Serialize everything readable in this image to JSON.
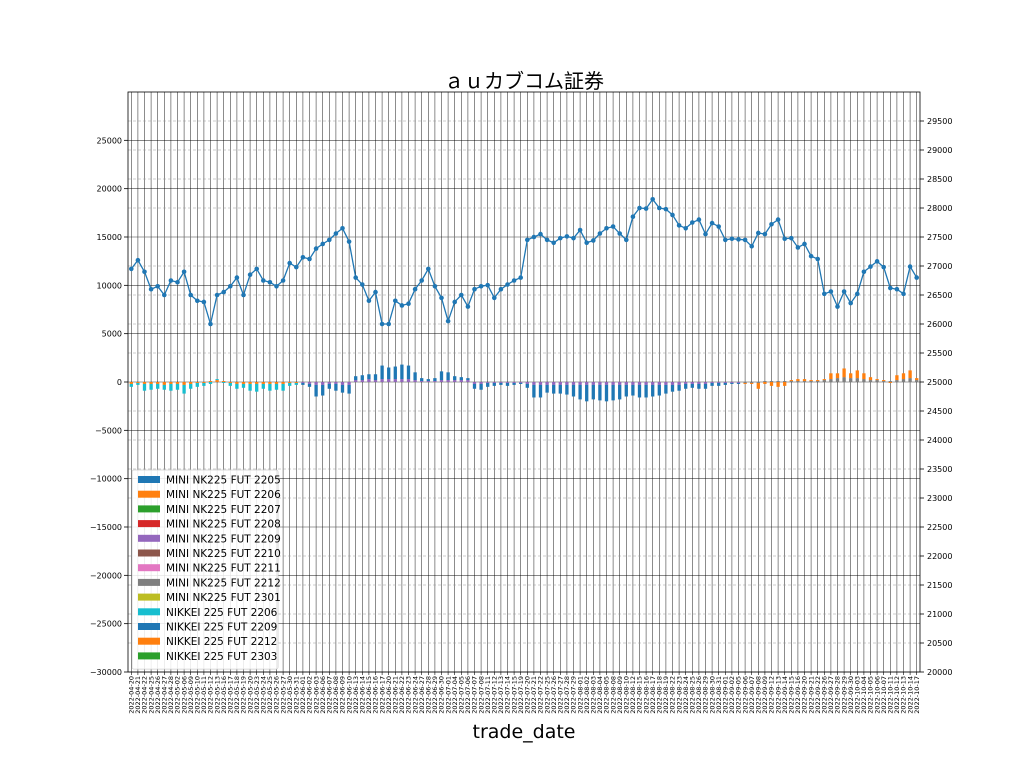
{
  "chart_data": {
    "type": "bar",
    "title": "ａｕカブコム証券",
    "xlabel": "trade_date",
    "ylabel": "",
    "ylim": [
      -30000,
      30000
    ],
    "y_ticks": [
      25000,
      20000,
      15000,
      10000,
      5000,
      0,
      -5000,
      -10000,
      -15000,
      -20000,
      -25000,
      -30000
    ],
    "y2lim": [
      20000,
      30000
    ],
    "y2_ticks": [
      29500,
      29000,
      28500,
      28000,
      27500,
      27000,
      26500,
      26000,
      25500,
      25000,
      24500,
      24000,
      23500,
      23000,
      22500,
      22000,
      21500,
      21000,
      20500,
      20000
    ],
    "grid": true,
    "legend_position": "lower-left",
    "stacked": true,
    "x": [
      "2022-04-20",
      "2022-04-21",
      "2022-04-22",
      "2022-04-25",
      "2022-04-26",
      "2022-04-27",
      "2022-04-28",
      "2022-05-02",
      "2022-05-06",
      "2022-05-09",
      "2022-05-10",
      "2022-05-11",
      "2022-05-12",
      "2022-05-13",
      "2022-05-16",
      "2022-05-17",
      "2022-05-18",
      "2022-05-19",
      "2022-05-20",
      "2022-05-23",
      "2022-05-24",
      "2022-05-25",
      "2022-05-26",
      "2022-05-27",
      "2022-05-30",
      "2022-05-31",
      "2022-06-01",
      "2022-06-02",
      "2022-06-03",
      "2022-06-06",
      "2022-06-07",
      "2022-06-08",
      "2022-06-09",
      "2022-06-10",
      "2022-06-13",
      "2022-06-14",
      "2022-06-15",
      "2022-06-16",
      "2022-06-17",
      "2022-06-20",
      "2022-06-21",
      "2022-06-22",
      "2022-06-23",
      "2022-06-24",
      "2022-06-27",
      "2022-06-28",
      "2022-06-29",
      "2022-06-30",
      "2022-07-01",
      "2022-07-04",
      "2022-07-05",
      "2022-07-06",
      "2022-07-07",
      "2022-07-08",
      "2022-07-11",
      "2022-07-12",
      "2022-07-13",
      "2022-07-14",
      "2022-07-15",
      "2022-07-19",
      "2022-07-20",
      "2022-07-21",
      "2022-07-22",
      "2022-07-25",
      "2022-07-26",
      "2022-07-27",
      "2022-07-28",
      "2022-07-29",
      "2022-08-01",
      "2022-08-02",
      "2022-08-03",
      "2022-08-04",
      "2022-08-05",
      "2022-08-08",
      "2022-08-09",
      "2022-08-10",
      "2022-08-12",
      "2022-08-15",
      "2022-08-16",
      "2022-08-17",
      "2022-08-18",
      "2022-08-19",
      "2022-08-22",
      "2022-08-23",
      "2022-08-24",
      "2022-08-25",
      "2022-08-26",
      "2022-08-29",
      "2022-08-30",
      "2022-08-31",
      "2022-09-01",
      "2022-09-02",
      "2022-09-05",
      "2022-09-06",
      "2022-09-07",
      "2022-09-08",
      "2022-09-09",
      "2022-09-12",
      "2022-09-13",
      "2022-09-14",
      "2022-09-15",
      "2022-09-16",
      "2022-09-20",
      "2022-09-21",
      "2022-09-22",
      "2022-09-26",
      "2022-09-27",
      "2022-09-28",
      "2022-09-29",
      "2022-09-30",
      "2022-10-03",
      "2022-10-04",
      "2022-10-05",
      "2022-10-06",
      "2022-10-07",
      "2022-10-11",
      "2022-10-12",
      "2022-10-13",
      "2022-10-14",
      "2022-10-17"
    ],
    "price_series": {
      "name": "",
      "axis": "right",
      "color": "#1f77b4",
      "values": [
        26950,
        27100,
        26900,
        26600,
        26650,
        26500,
        26750,
        26720,
        26900,
        26500,
        26400,
        26380,
        26000,
        26500,
        26550,
        26650,
        26800,
        26500,
        26850,
        26950,
        26750,
        26720,
        26650,
        26750,
        27050,
        26980,
        27150,
        27120,
        27300,
        27380,
        27450,
        27560,
        27650,
        27420,
        26800,
        26680,
        26400,
        26550,
        26000,
        26000,
        26400,
        26320,
        26350,
        26600,
        26750,
        26950,
        26650,
        26450,
        26050,
        26380,
        26500,
        26300,
        26600,
        26650,
        26670,
        26450,
        26600,
        26680,
        26750,
        26800,
        27450,
        27500,
        27550,
        27450,
        27400,
        27480,
        27510,
        27480,
        27620,
        27400,
        27440,
        27560,
        27650,
        27680,
        27560,
        27450,
        27850,
        28000,
        27990,
        28150,
        28000,
        27980,
        27880,
        27700,
        27650,
        27750,
        27800,
        27550,
        27740,
        27680,
        27450,
        27470,
        27460,
        27450,
        27340,
        27570,
        27550,
        27720,
        27800,
        27470,
        27480,
        27320,
        27380,
        27170,
        27120,
        26520,
        26560,
        26300,
        26560,
        26360,
        26520,
        26900,
        26990,
        27080,
        26980,
        26620,
        26600,
        26520,
        26990,
        26800
      ],
      "marker": "circle"
    },
    "series": [
      {
        "name": "MINI NK225 FUT 2205",
        "color": "#1f77b4"
      },
      {
        "name": "MINI NK225 FUT 2206",
        "color": "#ff7f0e"
      },
      {
        "name": "MINI NK225 FUT 2207",
        "color": "#2ca02c"
      },
      {
        "name": "MINI NK225 FUT 2208",
        "color": "#d62728"
      },
      {
        "name": "MINI NK225 FUT 2209",
        "color": "#9467bd"
      },
      {
        "name": "MINI NK225 FUT 2210",
        "color": "#8c564b"
      },
      {
        "name": "MINI NK225 FUT 2211",
        "color": "#e377c2"
      },
      {
        "name": "MINI NK225 FUT 2212",
        "color": "#7f7f7f"
      },
      {
        "name": "MINI NK225 FUT 2301",
        "color": "#bcbd22"
      },
      {
        "name": "NIKKEI 225 FUT 2206",
        "color": "#17becf"
      },
      {
        "name": "NIKKEI 225 FUT 2209",
        "color": "#1f77b4"
      },
      {
        "name": "NIKKEI 225 FUT 2212",
        "color": "#ff7f0e"
      },
      {
        "name": "NIKKEI 225 FUT 2303",
        "color": "#2ca02c"
      }
    ],
    "bar_segments": [
      [
        [
          1,
          -200
        ],
        [
          9,
          -300
        ]
      ],
      [
        [
          1,
          -100
        ],
        [
          9,
          -200
        ]
      ],
      [
        [
          1,
          -200
        ],
        [
          9,
          -700
        ]
      ],
      [
        [
          1,
          -200
        ],
        [
          9,
          -600
        ]
      ],
      [
        [
          1,
          -200
        ],
        [
          9,
          -500
        ]
      ],
      [
        [
          1,
          -300
        ],
        [
          9,
          -500
        ]
      ],
      [
        [
          1,
          -200
        ],
        [
          9,
          -700
        ]
      ],
      [
        [
          1,
          -200
        ],
        [
          9,
          -600
        ]
      ],
      [
        [
          1,
          -300
        ],
        [
          9,
          -900
        ]
      ],
      [
        [
          1,
          -200
        ],
        [
          9,
          -500
        ]
      ],
      [
        [
          1,
          -100
        ],
        [
          9,
          -400
        ]
      ],
      [
        [
          1,
          -100
        ],
        [
          9,
          -300
        ]
      ],
      [
        [
          1,
          100
        ],
        [
          9,
          -200
        ]
      ],
      [
        [
          1,
          200
        ],
        [
          9,
          100
        ]
      ],
      [
        [
          1,
          100
        ],
        [
          9,
          -100
        ]
      ],
      [
        [
          1,
          -100
        ],
        [
          9,
          -300
        ]
      ],
      [
        [
          1,
          -200
        ],
        [
          9,
          -500
        ]
      ],
      [
        [
          1,
          -200
        ],
        [
          9,
          -400
        ]
      ],
      [
        [
          1,
          -200
        ],
        [
          9,
          -700
        ]
      ],
      [
        [
          1,
          -200
        ],
        [
          9,
          -800
        ]
      ],
      [
        [
          1,
          -200
        ],
        [
          9,
          -500
        ]
      ],
      [
        [
          1,
          -200
        ],
        [
          9,
          -700
        ]
      ],
      [
        [
          1,
          -200
        ],
        [
          9,
          -600
        ]
      ],
      [
        [
          1,
          -200
        ],
        [
          9,
          -700
        ]
      ],
      [
        [
          1,
          -100
        ],
        [
          9,
          -300
        ]
      ],
      [
        [
          1,
          -100
        ],
        [
          9,
          -200
        ]
      ],
      [
        [
          4,
          -100
        ],
        [
          10,
          -200
        ]
      ],
      [
        [
          4,
          -200
        ],
        [
          10,
          -300
        ]
      ],
      [
        [
          4,
          -300
        ],
        [
          10,
          -1200
        ]
      ],
      [
        [
          4,
          -300
        ],
        [
          10,
          -1100
        ]
      ],
      [
        [
          4,
          -200
        ],
        [
          10,
          -500
        ]
      ],
      [
        [
          4,
          -200
        ],
        [
          10,
          -700
        ]
      ],
      [
        [
          4,
          -300
        ],
        [
          10,
          -800
        ]
      ],
      [
        [
          4,
          -300
        ],
        [
          10,
          -900
        ]
      ],
      [
        [
          4,
          200
        ],
        [
          10,
          400
        ]
      ],
      [
        [
          4,
          200
        ],
        [
          10,
          500
        ]
      ],
      [
        [
          4,
          300
        ],
        [
          10,
          500
        ]
      ],
      [
        [
          4,
          200
        ],
        [
          10,
          600
        ]
      ],
      [
        [
          4,
          300
        ],
        [
          10,
          1400
        ]
      ],
      [
        [
          4,
          300
        ],
        [
          10,
          1200
        ]
      ],
      [
        [
          4,
          300
        ],
        [
          10,
          1300
        ]
      ],
      [
        [
          4,
          300
        ],
        [
          10,
          1500
        ]
      ],
      [
        [
          4,
          300
        ],
        [
          10,
          1400
        ]
      ],
      [
        [
          4,
          200
        ],
        [
          10,
          800
        ]
      ],
      [
        [
          4,
          100
        ],
        [
          10,
          300
        ]
      ],
      [
        [
          4,
          100
        ],
        [
          10,
          200
        ]
      ],
      [
        [
          4,
          100
        ],
        [
          10,
          300
        ]
      ],
      [
        [
          4,
          200
        ],
        [
          10,
          900
        ]
      ],
      [
        [
          4,
          200
        ],
        [
          10,
          800
        ]
      ],
      [
        [
          4,
          200
        ],
        [
          10,
          400
        ]
      ],
      [
        [
          4,
          200
        ],
        [
          10,
          300
        ]
      ],
      [
        [
          4,
          200
        ],
        [
          10,
          200
        ]
      ],
      [
        [
          4,
          -200
        ],
        [
          10,
          -500
        ]
      ],
      [
        [
          4,
          -200
        ],
        [
          10,
          -600
        ]
      ],
      [
        [
          4,
          -100
        ],
        [
          10,
          -400
        ]
      ],
      [
        [
          4,
          -100
        ],
        [
          10,
          -300
        ]
      ],
      [
        [
          4,
          -100
        ],
        [
          10,
          -200
        ]
      ],
      [
        [
          4,
          -100
        ],
        [
          10,
          -300
        ]
      ],
      [
        [
          4,
          -100
        ],
        [
          10,
          -200
        ]
      ],
      [
        [
          4,
          -100
        ],
        [
          10,
          -100
        ]
      ],
      [
        [
          4,
          -200
        ],
        [
          10,
          -400
        ]
      ],
      [
        [
          4,
          -300
        ],
        [
          10,
          -1300
        ]
      ],
      [
        [
          4,
          -300
        ],
        [
          10,
          -1300
        ]
      ],
      [
        [
          4,
          -300
        ],
        [
          10,
          -800
        ]
      ],
      [
        [
          4,
          -300
        ],
        [
          10,
          -900
        ]
      ],
      [
        [
          4,
          -300
        ],
        [
          10,
          -900
        ]
      ],
      [
        [
          4,
          -300
        ],
        [
          10,
          -1000
        ]
      ],
      [
        [
          4,
          -300
        ],
        [
          10,
          -1200
        ]
      ],
      [
        [
          4,
          -300
        ],
        [
          10,
          -1500
        ]
      ],
      [
        [
          4,
          -300
        ],
        [
          10,
          -1700
        ]
      ],
      [
        [
          4,
          -300
        ],
        [
          10,
          -1500
        ]
      ],
      [
        [
          4,
          -300
        ],
        [
          10,
          -1600
        ]
      ],
      [
        [
          4,
          -300
        ],
        [
          10,
          -1700
        ]
      ],
      [
        [
          4,
          -300
        ],
        [
          10,
          -1600
        ]
      ],
      [
        [
          4,
          -300
        ],
        [
          10,
          -1500
        ]
      ],
      [
        [
          4,
          -300
        ],
        [
          10,
          -1200
        ]
      ],
      [
        [
          4,
          -300
        ],
        [
          10,
          -1100
        ]
      ],
      [
        [
          4,
          -300
        ],
        [
          10,
          -1300
        ]
      ],
      [
        [
          4,
          -300
        ],
        [
          10,
          -1300
        ]
      ],
      [
        [
          4,
          -300
        ],
        [
          10,
          -1200
        ]
      ],
      [
        [
          4,
          -300
        ],
        [
          10,
          -1100
        ]
      ],
      [
        [
          4,
          -300
        ],
        [
          10,
          -900
        ]
      ],
      [
        [
          4,
          -300
        ],
        [
          10,
          -700
        ]
      ],
      [
        [
          4,
          -300
        ],
        [
          10,
          -600
        ]
      ],
      [
        [
          4,
          -200
        ],
        [
          10,
          -500
        ]
      ],
      [
        [
          4,
          -200
        ],
        [
          10,
          -400
        ]
      ],
      [
        [
          4,
          -200
        ],
        [
          10,
          -500
        ]
      ],
      [
        [
          4,
          -200
        ],
        [
          10,
          -500
        ]
      ],
      [
        [
          4,
          -100
        ],
        [
          10,
          -300
        ]
      ],
      [
        [
          4,
          -100
        ],
        [
          10,
          -300
        ]
      ],
      [
        [
          4,
          -100
        ],
        [
          10,
          -200
        ]
      ],
      [
        [
          4,
          -100
        ],
        [
          10,
          -100
        ]
      ],
      [
        [
          4,
          -100
        ],
        [
          10,
          -100
        ]
      ],
      [
        [
          7,
          -100
        ],
        [
          11,
          -100
        ]
      ],
      [
        [
          7,
          -100
        ],
        [
          11,
          -100
        ]
      ],
      [
        [
          7,
          -100
        ],
        [
          11,
          -600
        ]
      ],
      [
        [
          7,
          100
        ],
        [
          11,
          -200
        ]
      ],
      [
        [
          7,
          100
        ],
        [
          11,
          -400
        ]
      ],
      [
        [
          7,
          100
        ],
        [
          11,
          -500
        ]
      ],
      [
        [
          7,
          100
        ],
        [
          11,
          -400
        ]
      ],
      [
        [
          7,
          100
        ],
        [
          11,
          100
        ]
      ],
      [
        [
          7,
          100
        ],
        [
          11,
          200
        ]
      ],
      [
        [
          7,
          100
        ],
        [
          11,
          200
        ]
      ],
      [
        [
          7,
          100
        ],
        [
          11,
          100
        ]
      ],
      [
        [
          7,
          100
        ],
        [
          11,
          100
        ]
      ],
      [
        [
          7,
          200
        ],
        [
          11,
          100
        ]
      ],
      [
        [
          7,
          300
        ],
        [
          11,
          600
        ]
      ],
      [
        [
          7,
          400
        ],
        [
          11,
          500
        ]
      ],
      [
        [
          7,
          500
        ],
        [
          11,
          900
        ]
      ],
      [
        [
          7,
          400
        ],
        [
          11,
          500
        ]
      ],
      [
        [
          7,
          400
        ],
        [
          11,
          800
        ]
      ],
      [
        [
          7,
          300
        ],
        [
          11,
          600
        ]
      ],
      [
        [
          7,
          200
        ],
        [
          11,
          300
        ]
      ],
      [
        [
          7,
          200
        ],
        [
          11,
          100
        ]
      ],
      [
        [
          7,
          100
        ],
        [
          11,
          100
        ]
      ],
      [
        [
          7,
          100
        ],
        [
          11,
          -100
        ]
      ],
      [
        [
          7,
          200
        ],
        [
          11,
          500
        ]
      ],
      [
        [
          7,
          300
        ],
        [
          11,
          600
        ]
      ],
      [
        [
          7,
          400
        ],
        [
          11,
          800
        ]
      ],
      [
        [
          7,
          200
        ],
        [
          11,
          200
        ]
      ]
    ]
  }
}
